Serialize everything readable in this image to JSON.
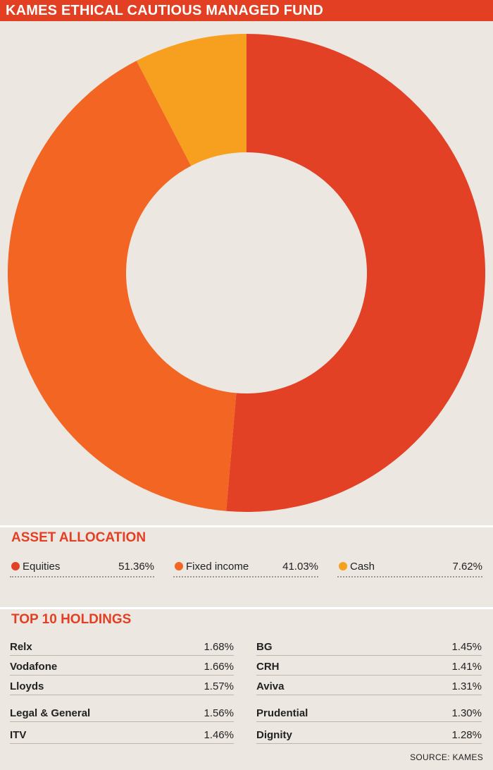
{
  "title": "KAMES ETHICAL CAUTIOUS MANAGED FUND",
  "chart_data": {
    "type": "pie",
    "style": "donut",
    "title": "ASSET ALLOCATION",
    "categories": [
      "Equities",
      "Fixed income",
      "Cash"
    ],
    "values": [
      51.36,
      41.03,
      7.62
    ],
    "value_labels": [
      "51.36%",
      "41.03%",
      "7.62%"
    ],
    "colors": [
      "#e34125",
      "#f26522",
      "#f7a01f"
    ]
  },
  "holdings": {
    "title": "TOP 10 HOLDINGS",
    "left": [
      {
        "name": "Relx",
        "value": "1.68%"
      },
      {
        "name": "Vodafone",
        "value": "1.66%"
      },
      {
        "name": "Lloyds",
        "value": "1.57%"
      },
      {
        "name": "Legal & General",
        "value": "1.56%"
      },
      {
        "name": "ITV",
        "value": "1.46%"
      }
    ],
    "right": [
      {
        "name": "BG",
        "value": "1.45%"
      },
      {
        "name": "CRH",
        "value": "1.41%"
      },
      {
        "name": "Aviva",
        "value": "1.31%"
      },
      {
        "name": "Prudential",
        "value": "1.30%"
      },
      {
        "name": "Dignity",
        "value": "1.28%"
      }
    ]
  },
  "source": "SOURCE: KAMES"
}
